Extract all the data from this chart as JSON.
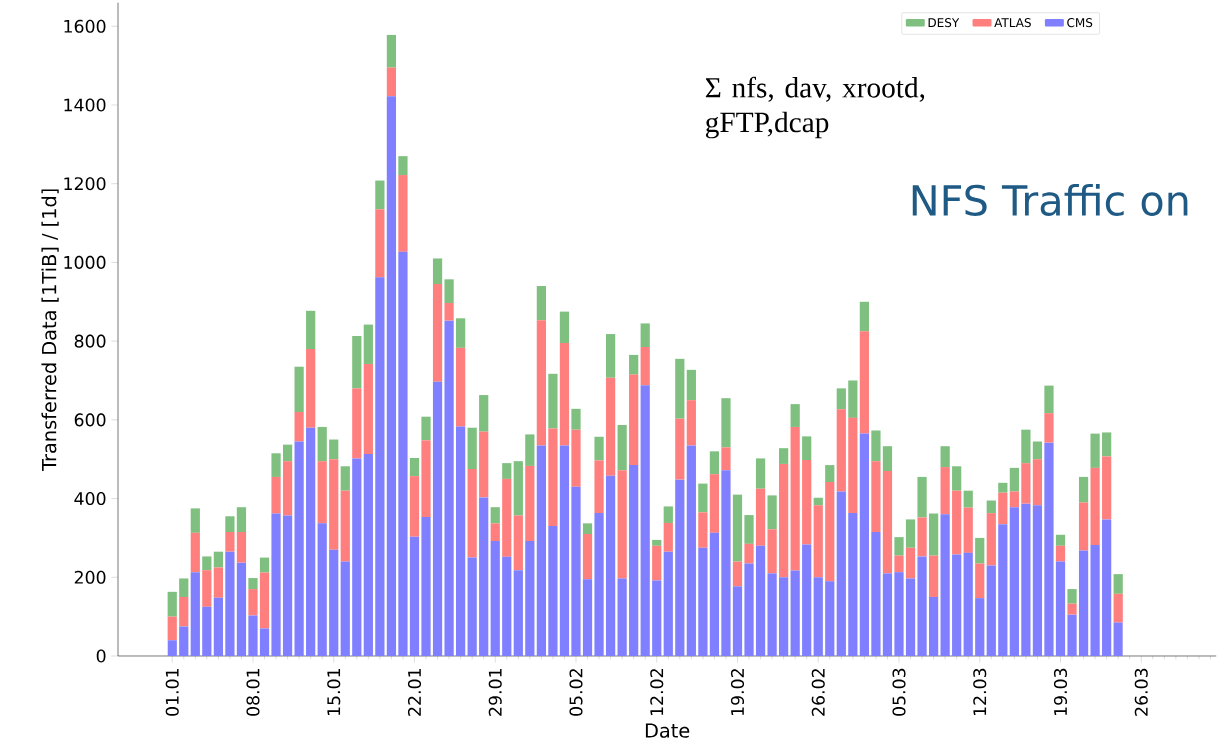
{
  "chart_data": {
    "type": "bar",
    "stacked": true,
    "xlabel": "Date",
    "ylabel": "Transferred Data [1TiB] / [1d]",
    "categories": [
      "01.01",
      null,
      null,
      null,
      null,
      null,
      null,
      "08.01",
      null,
      null,
      null,
      null,
      null,
      null,
      "15.01",
      null,
      null,
      null,
      null,
      null,
      null,
      "22.01",
      null,
      null,
      null,
      null,
      null,
      null,
      "29.01",
      null,
      null,
      null,
      null,
      null,
      null,
      "05.02",
      null,
      null,
      null,
      null,
      null,
      null,
      "12.02",
      null,
      null,
      null,
      null,
      null,
      null,
      "19.02",
      null,
      null,
      null,
      null,
      null,
      null,
      "26.02",
      null,
      null,
      null,
      null,
      null,
      null,
      "05.03",
      null,
      null,
      null,
      null,
      null,
      null,
      "12.03",
      null,
      null,
      null,
      null,
      null,
      null,
      "19.03",
      null,
      null,
      null,
      null,
      null,
      null,
      "26.03",
      null,
      null,
      null,
      null,
      null,
      null
    ],
    "series": [
      {
        "name": "CMS",
        "color": "#7f7fff",
        "values": [
          40,
          75,
          213,
          125,
          148,
          265,
          237,
          103,
          70,
          362,
          357,
          545,
          580,
          337,
          270,
          240,
          502,
          513,
          962,
          1422,
          1027,
          303,
          353,
          697,
          852,
          583,
          250,
          403,
          292,
          252,
          218,
          292,
          535,
          330,
          535,
          430,
          195,
          363,
          458,
          197,
          485,
          688,
          192,
          265,
          448,
          535,
          275,
          313,
          472,
          177,
          235,
          280,
          210,
          200,
          217,
          283,
          200,
          190,
          418,
          363,
          565,
          315,
          210,
          213,
          197,
          253,
          150,
          360,
          258,
          262,
          147,
          230,
          335,
          378,
          387,
          383,
          542,
          240,
          105,
          268,
          282,
          347,
          85,
          null,
          null,
          null,
          null,
          null,
          null,
          null,
          null
        ]
      },
      {
        "name": "ATLAS",
        "color": "#ff7f7f",
        "values": [
          60,
          75,
          100,
          93,
          77,
          50,
          78,
          67,
          142,
          93,
          138,
          75,
          200,
          158,
          230,
          180,
          178,
          229,
          173,
          73,
          195,
          154,
          195,
          248,
          45,
          200,
          225,
          167,
          45,
          198,
          139,
          191,
          318,
          248,
          260,
          145,
          115,
          134,
          249,
          275,
          230,
          97,
          88,
          73,
          155,
          115,
          90,
          149,
          58,
          63,
          50,
          145,
          112,
          288,
          365,
          215,
          183,
          252,
          209,
          242,
          260,
          180,
          260,
          42,
          78,
          99,
          105,
          120,
          162,
          115,
          88,
          133,
          80,
          40,
          103,
          117,
          75,
          40,
          28,
          122,
          196,
          160,
          73,
          null,
          null,
          null,
          null,
          null,
          null,
          null,
          null
        ]
      },
      {
        "name": "DESY",
        "color": "#7fbf7f",
        "values": [
          63,
          47,
          62,
          35,
          40,
          40,
          63,
          28,
          38,
          60,
          42,
          115,
          97,
          87,
          50,
          62,
          133,
          100,
          73,
          83,
          48,
          46,
          60,
          65,
          60,
          75,
          105,
          93,
          41,
          40,
          138,
          80,
          87,
          139,
          80,
          53,
          27,
          60,
          111,
          115,
          50,
          60,
          15,
          42,
          152,
          77,
          73,
          58,
          125,
          170,
          73,
          77,
          86,
          40,
          58,
          60,
          19,
          43,
          53,
          95,
          75,
          78,
          63,
          47,
          72,
          103,
          107,
          53,
          62,
          43,
          65,
          32,
          25,
          60,
          85,
          45,
          70,
          28,
          37,
          65,
          87,
          61,
          50,
          null,
          null,
          null,
          null,
          null,
          null,
          null,
          null
        ]
      }
    ],
    "ylim": [
      0,
      1660
    ],
    "yticks": [
      0,
      200,
      400,
      600,
      800,
      1000,
      1200,
      1400,
      1600
    ],
    "legend": "top right",
    "grid": false,
    "annotations": [
      "Σ nfs, dav, xrootd, gFTP,dcap",
      "NFS Traffic on"
    ]
  }
}
